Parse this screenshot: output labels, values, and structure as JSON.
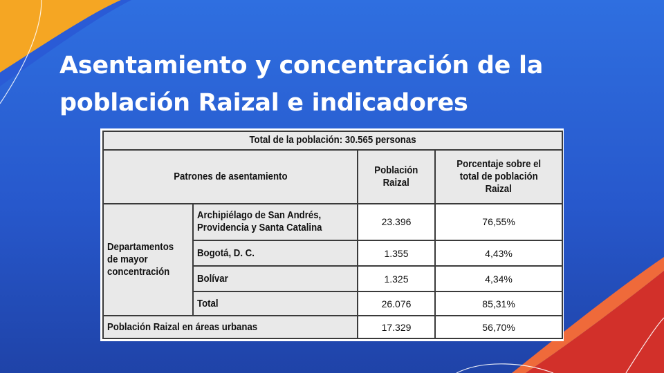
{
  "slide": {
    "title_line1": "Asentamiento y concentración de la",
    "title_line2": "población Raizal e indicadores"
  },
  "table": {
    "total_header": "Total de la población: 30.565 personas",
    "col_patrones": "Patrones de asentamiento",
    "col_poblacion_1": "Población",
    "col_poblacion_2": "Raizal",
    "col_porcentaje_1": "Porcentaje sobre el",
    "col_porcentaje_2": "total de población",
    "col_porcentaje_3": "Raizal",
    "group_label_1": "Departamentos",
    "group_label_2": "de mayor",
    "group_label_3": "concentración",
    "rows": [
      {
        "name_1": "Archipiélago de San Andrés,",
        "name_2": "Providencia y Santa Catalina",
        "poblacion": "23.396",
        "porcentaje": "76,55%"
      },
      {
        "name_1": "Bogotá, D. C.",
        "poblacion": "1.355",
        "porcentaje": "4,43%"
      },
      {
        "name_1": "Bolívar",
        "poblacion": "1.325",
        "porcentaje": "4,34%"
      },
      {
        "name_1": "Total",
        "poblacion": "26.076",
        "porcentaje": "85,31%"
      }
    ],
    "urban": {
      "label": "Población Raizal en áreas urbanas",
      "poblacion": "17.329",
      "porcentaje": "56,70%"
    }
  },
  "colors": {
    "background_top": "#2f6fe0",
    "background_bottom": "#1f43a8",
    "accent_orange": "#f5a623",
    "accent_red": "#d2302a"
  }
}
